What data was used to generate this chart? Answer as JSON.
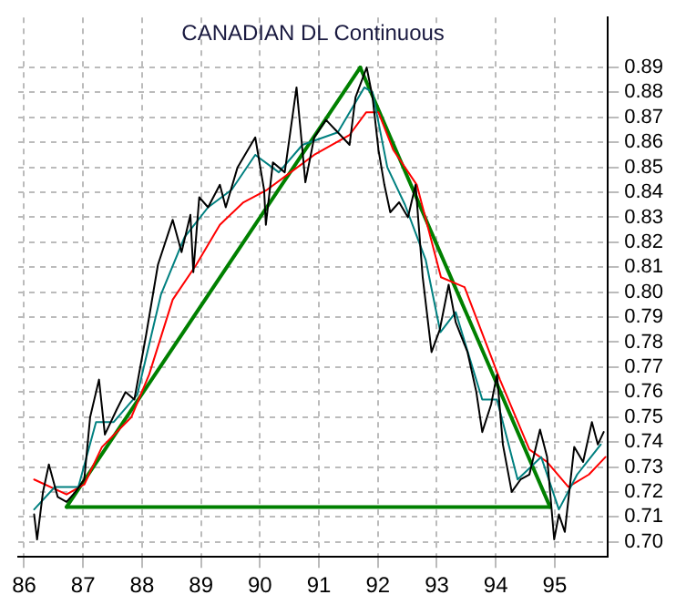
{
  "chart_data": {
    "type": "line",
    "title": "CANADIAN DL Continuous",
    "series": [
      {
        "color": "#000000",
        "x": [
          86.17,
          86.22,
          86.32,
          86.42,
          86.57,
          86.72,
          86.87,
          87.02,
          87.12,
          87.27,
          87.37,
          87.57,
          87.72,
          87.87,
          88.07,
          88.27,
          88.52,
          88.67,
          88.82,
          88.87,
          88.97,
          89.12,
          89.32,
          89.42,
          89.62,
          89.92,
          90.07,
          90.1,
          90.22,
          90.42,
          90.62,
          90.7,
          90.77,
          90.92,
          91.12,
          91.32,
          91.52,
          91.62,
          91.81,
          91.91,
          92.01,
          92.11,
          92.21,
          92.36,
          92.51,
          92.64,
          92.76,
          92.91,
          93.05,
          93.2,
          93.32,
          93.52,
          93.67,
          93.77,
          93.92,
          94.02,
          94.12,
          94.27,
          94.42,
          94.57,
          94.75,
          94.87,
          94.99,
          95.07,
          95.17,
          95.33,
          95.48,
          95.63,
          95.73,
          95.83
        ],
        "values": [
          0.711,
          0.701,
          0.72,
          0.731,
          0.718,
          0.716,
          0.72,
          0.725,
          0.75,
          0.765,
          0.743,
          0.753,
          0.76,
          0.757,
          0.783,
          0.811,
          0.829,
          0.816,
          0.831,
          0.808,
          0.838,
          0.834,
          0.843,
          0.834,
          0.85,
          0.862,
          0.841,
          0.827,
          0.852,
          0.848,
          0.882,
          0.862,
          0.844,
          0.862,
          0.869,
          0.864,
          0.859,
          0.878,
          0.89,
          0.878,
          0.857,
          0.843,
          0.832,
          0.836,
          0.83,
          0.843,
          0.806,
          0.776,
          0.785,
          0.803,
          0.788,
          0.776,
          0.76,
          0.744,
          0.755,
          0.767,
          0.739,
          0.72,
          0.725,
          0.727,
          0.745,
          0.734,
          0.701,
          0.711,
          0.704,
          0.738,
          0.732,
          0.748,
          0.739,
          0.744
        ]
      },
      {
        "color": "#008080",
        "x": [
          86.17,
          86.52,
          86.92,
          87.22,
          87.52,
          87.92,
          88.32,
          88.72,
          89.12,
          89.52,
          89.92,
          90.32,
          90.72,
          91.32,
          91.77,
          91.91,
          92.16,
          92.46,
          92.81,
          93.06,
          93.32,
          93.77,
          94.02,
          94.37,
          94.77,
          95.07,
          95.38,
          95.78
        ],
        "values": [
          0.713,
          0.722,
          0.722,
          0.748,
          0.748,
          0.759,
          0.799,
          0.822,
          0.834,
          0.841,
          0.855,
          0.848,
          0.859,
          0.864,
          0.882,
          0.88,
          0.85,
          0.835,
          0.813,
          0.784,
          0.792,
          0.757,
          0.757,
          0.725,
          0.734,
          0.713,
          0.727,
          0.739
        ]
      },
      {
        "color": "#ff0000",
        "x": [
          86.17,
          86.72,
          87.02,
          87.32,
          87.82,
          88.12,
          88.52,
          88.92,
          89.32,
          89.72,
          90.12,
          90.52,
          90.92,
          91.52,
          91.8,
          92.01,
          92.26,
          92.66,
          93.07,
          93.47,
          94.07,
          94.57,
          94.87,
          95.23,
          95.58,
          95.86
        ],
        "values": [
          0.725,
          0.719,
          0.723,
          0.738,
          0.75,
          0.767,
          0.797,
          0.811,
          0.827,
          0.836,
          0.841,
          0.848,
          0.855,
          0.863,
          0.872,
          0.872,
          0.857,
          0.843,
          0.806,
          0.802,
          0.765,
          0.737,
          0.732,
          0.722,
          0.727,
          0.734
        ]
      },
      {
        "color": "#008000",
        "x": [
          86.72,
          91.7
        ],
        "values": [
          0.714,
          0.89
        ]
      },
      {
        "color": "#008000",
        "x": [
          91.7,
          94.92
        ],
        "values": [
          0.89,
          0.714
        ]
      },
      {
        "color": "#008000",
        "x": [
          86.72,
          94.92
        ],
        "values": [
          0.714,
          0.714
        ]
      }
    ],
    "xlim": [
      85.9,
      95.9
    ],
    "xticks": [
      86,
      87,
      88,
      89,
      90,
      91,
      92,
      93,
      94,
      95
    ],
    "ylim": [
      0.694,
      0.91
    ],
    "yticks": [
      {
        "value": 0.7,
        "label": "0.70"
      },
      {
        "value": 0.71,
        "label": "0.71"
      },
      {
        "value": 0.72,
        "label": "0.72"
      },
      {
        "value": 0.73,
        "label": "0.73"
      },
      {
        "value": 0.74,
        "label": "0.74"
      },
      {
        "value": 0.75,
        "label": "0.75"
      },
      {
        "value": 0.76,
        "label": "0.76"
      },
      {
        "value": 0.77,
        "label": "0.77"
      },
      {
        "value": 0.78,
        "label": "0.78"
      },
      {
        "value": 0.79,
        "label": "0.79"
      },
      {
        "value": 0.8,
        "label": "0.80"
      },
      {
        "value": 0.81,
        "label": "0.81"
      },
      {
        "value": 0.82,
        "label": "0.82"
      },
      {
        "value": 0.83,
        "label": "0.83"
      },
      {
        "value": 0.84,
        "label": "0.84"
      },
      {
        "value": 0.85,
        "label": "0.85"
      },
      {
        "value": 0.86,
        "label": "0.86"
      },
      {
        "value": 0.87,
        "label": "0.87"
      },
      {
        "value": 0.88,
        "label": "0.88"
      },
      {
        "value": 0.89,
        "label": "0.89"
      }
    ],
    "grid": true
  }
}
